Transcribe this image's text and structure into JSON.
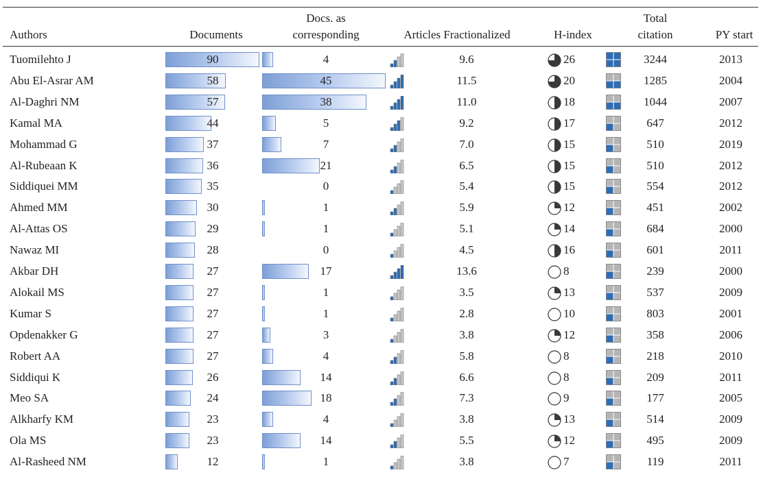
{
  "headers": {
    "authors": "Authors",
    "documents": "Documents",
    "docs_corr_line1": "Docs. as",
    "docs_corr_line2": "corresponding",
    "articles_fract": "Articles Fractionalized",
    "hindex": "H-index",
    "total_line1": "Total",
    "total_line2": "citation",
    "pystart": "PY start"
  },
  "rows": [
    {
      "author": "Tuomilehto J",
      "documents": "90",
      "docs_corr": "4",
      "articles_fract": "9.6",
      "hindex": "26",
      "total_citation": "3244",
      "py_start": "2013",
      "signal_level": 2,
      "hindex_fill": 0.75,
      "citation_tier": 4
    },
    {
      "author": "Abu El-Asrar AM",
      "documents": "58",
      "docs_corr": "45",
      "articles_fract": "11.5",
      "hindex": "20",
      "total_citation": "1285",
      "py_start": "2004",
      "signal_level": 4,
      "hindex_fill": 0.75,
      "citation_tier": 2
    },
    {
      "author": "Al-Daghri NM",
      "documents": "57",
      "docs_corr": "38",
      "articles_fract": "11.0",
      "hindex": "18",
      "total_citation": "1044",
      "py_start": "2007",
      "signal_level": 4,
      "hindex_fill": 0.5,
      "citation_tier": 2
    },
    {
      "author": "Kamal MA",
      "documents": "44",
      "docs_corr": "5",
      "articles_fract": "9.2",
      "hindex": "17",
      "total_citation": "647",
      "py_start": "2012",
      "signal_level": 3,
      "hindex_fill": 0.5,
      "citation_tier": 1
    },
    {
      "author": "Mohammad G",
      "documents": "37",
      "docs_corr": "7",
      "articles_fract": "7.0",
      "hindex": "15",
      "total_citation": "510",
      "py_start": "2019",
      "signal_level": 2,
      "hindex_fill": 0.5,
      "citation_tier": 1
    },
    {
      "author": "Al-Rubeaan K",
      "documents": "36",
      "docs_corr": "21",
      "articles_fract": "6.5",
      "hindex": "15",
      "total_citation": "510",
      "py_start": "2012",
      "signal_level": 2,
      "hindex_fill": 0.5,
      "citation_tier": 1
    },
    {
      "author": "Siddiquei MM",
      "documents": "35",
      "docs_corr": "0",
      "articles_fract": "5.4",
      "hindex": "15",
      "total_citation": "554",
      "py_start": "2012",
      "signal_level": 1,
      "hindex_fill": 0.5,
      "citation_tier": 1
    },
    {
      "author": "Ahmed MM",
      "documents": "30",
      "docs_corr": "1",
      "articles_fract": "5.9",
      "hindex": "12",
      "total_citation": "451",
      "py_start": "2002",
      "signal_level": 2,
      "hindex_fill": 0.25,
      "citation_tier": 1
    },
    {
      "author": "Al-Attas OS",
      "documents": "29",
      "docs_corr": "1",
      "articles_fract": "5.1",
      "hindex": "14",
      "total_citation": "684",
      "py_start": "2000",
      "signal_level": 1,
      "hindex_fill": 0.25,
      "citation_tier": 1
    },
    {
      "author": "Nawaz MI",
      "documents": "28",
      "docs_corr": "0",
      "articles_fract": "4.5",
      "hindex": "16",
      "total_citation": "601",
      "py_start": "2011",
      "signal_level": 1,
      "hindex_fill": 0.5,
      "citation_tier": 1
    },
    {
      "author": "Akbar DH",
      "documents": "27",
      "docs_corr": "17",
      "articles_fract": "13.6",
      "hindex": "8",
      "total_citation": "239",
      "py_start": "2000",
      "signal_level": 4,
      "hindex_fill": 0,
      "citation_tier": 1
    },
    {
      "author": "Alokail MS",
      "documents": "27",
      "docs_corr": "1",
      "articles_fract": "3.5",
      "hindex": "13",
      "total_citation": "537",
      "py_start": "2009",
      "signal_level": 1,
      "hindex_fill": 0.25,
      "citation_tier": 1
    },
    {
      "author": "Kumar S",
      "documents": "27",
      "docs_corr": "1",
      "articles_fract": "2.8",
      "hindex": "10",
      "total_citation": "803",
      "py_start": "2001",
      "signal_level": 1,
      "hindex_fill": 0,
      "citation_tier": 1
    },
    {
      "author": "Opdenakker G",
      "documents": "27",
      "docs_corr": "3",
      "articles_fract": "3.8",
      "hindex": "12",
      "total_citation": "358",
      "py_start": "2006",
      "signal_level": 1,
      "hindex_fill": 0.25,
      "citation_tier": 1
    },
    {
      "author": "Robert AA",
      "documents": "27",
      "docs_corr": "4",
      "articles_fract": "5.8",
      "hindex": "8",
      "total_citation": "218",
      "py_start": "2010",
      "signal_level": 2,
      "hindex_fill": 0,
      "citation_tier": 1
    },
    {
      "author": "Siddiqui K",
      "documents": "26",
      "docs_corr": "14",
      "articles_fract": "6.6",
      "hindex": "8",
      "total_citation": "209",
      "py_start": "2011",
      "signal_level": 2,
      "hindex_fill": 0,
      "citation_tier": 1
    },
    {
      "author": "Meo SA",
      "documents": "24",
      "docs_corr": "18",
      "articles_fract": "7.3",
      "hindex": "9",
      "total_citation": "177",
      "py_start": "2005",
      "signal_level": 2,
      "hindex_fill": 0,
      "citation_tier": 1
    },
    {
      "author": "Alkharfy KM",
      "documents": "23",
      "docs_corr": "4",
      "articles_fract": "3.8",
      "hindex": "13",
      "total_citation": "514",
      "py_start": "2009",
      "signal_level": 1,
      "hindex_fill": 0.25,
      "citation_tier": 1
    },
    {
      "author": "Ola MS",
      "documents": "23",
      "docs_corr": "14",
      "articles_fract": "5.5",
      "hindex": "12",
      "total_citation": "495",
      "py_start": "2009",
      "signal_level": 2,
      "hindex_fill": 0.25,
      "citation_tier": 1
    },
    {
      "author": "Al-Rasheed NM",
      "documents": "12",
      "docs_corr": "1",
      "articles_fract": "3.8",
      "hindex": "7",
      "total_citation": "119",
      "py_start": "2011",
      "signal_level": 1,
      "hindex_fill": 0,
      "citation_tier": 1
    }
  ],
  "colors": {
    "bar_dark": "#7d9fd6",
    "bar_light": "#f4f7fd",
    "signal_on": "#2e6db4",
    "signal_off": "#c9c9c9",
    "pie_fill": "#3a3a3a",
    "quad_blue": "#2e6db4",
    "quad_gray": "#b5b5b5"
  },
  "icons": {
    "signal": "signal-bars-icon",
    "hindex": "harvey-ball-icon",
    "citation": "quadrant-icon"
  }
}
